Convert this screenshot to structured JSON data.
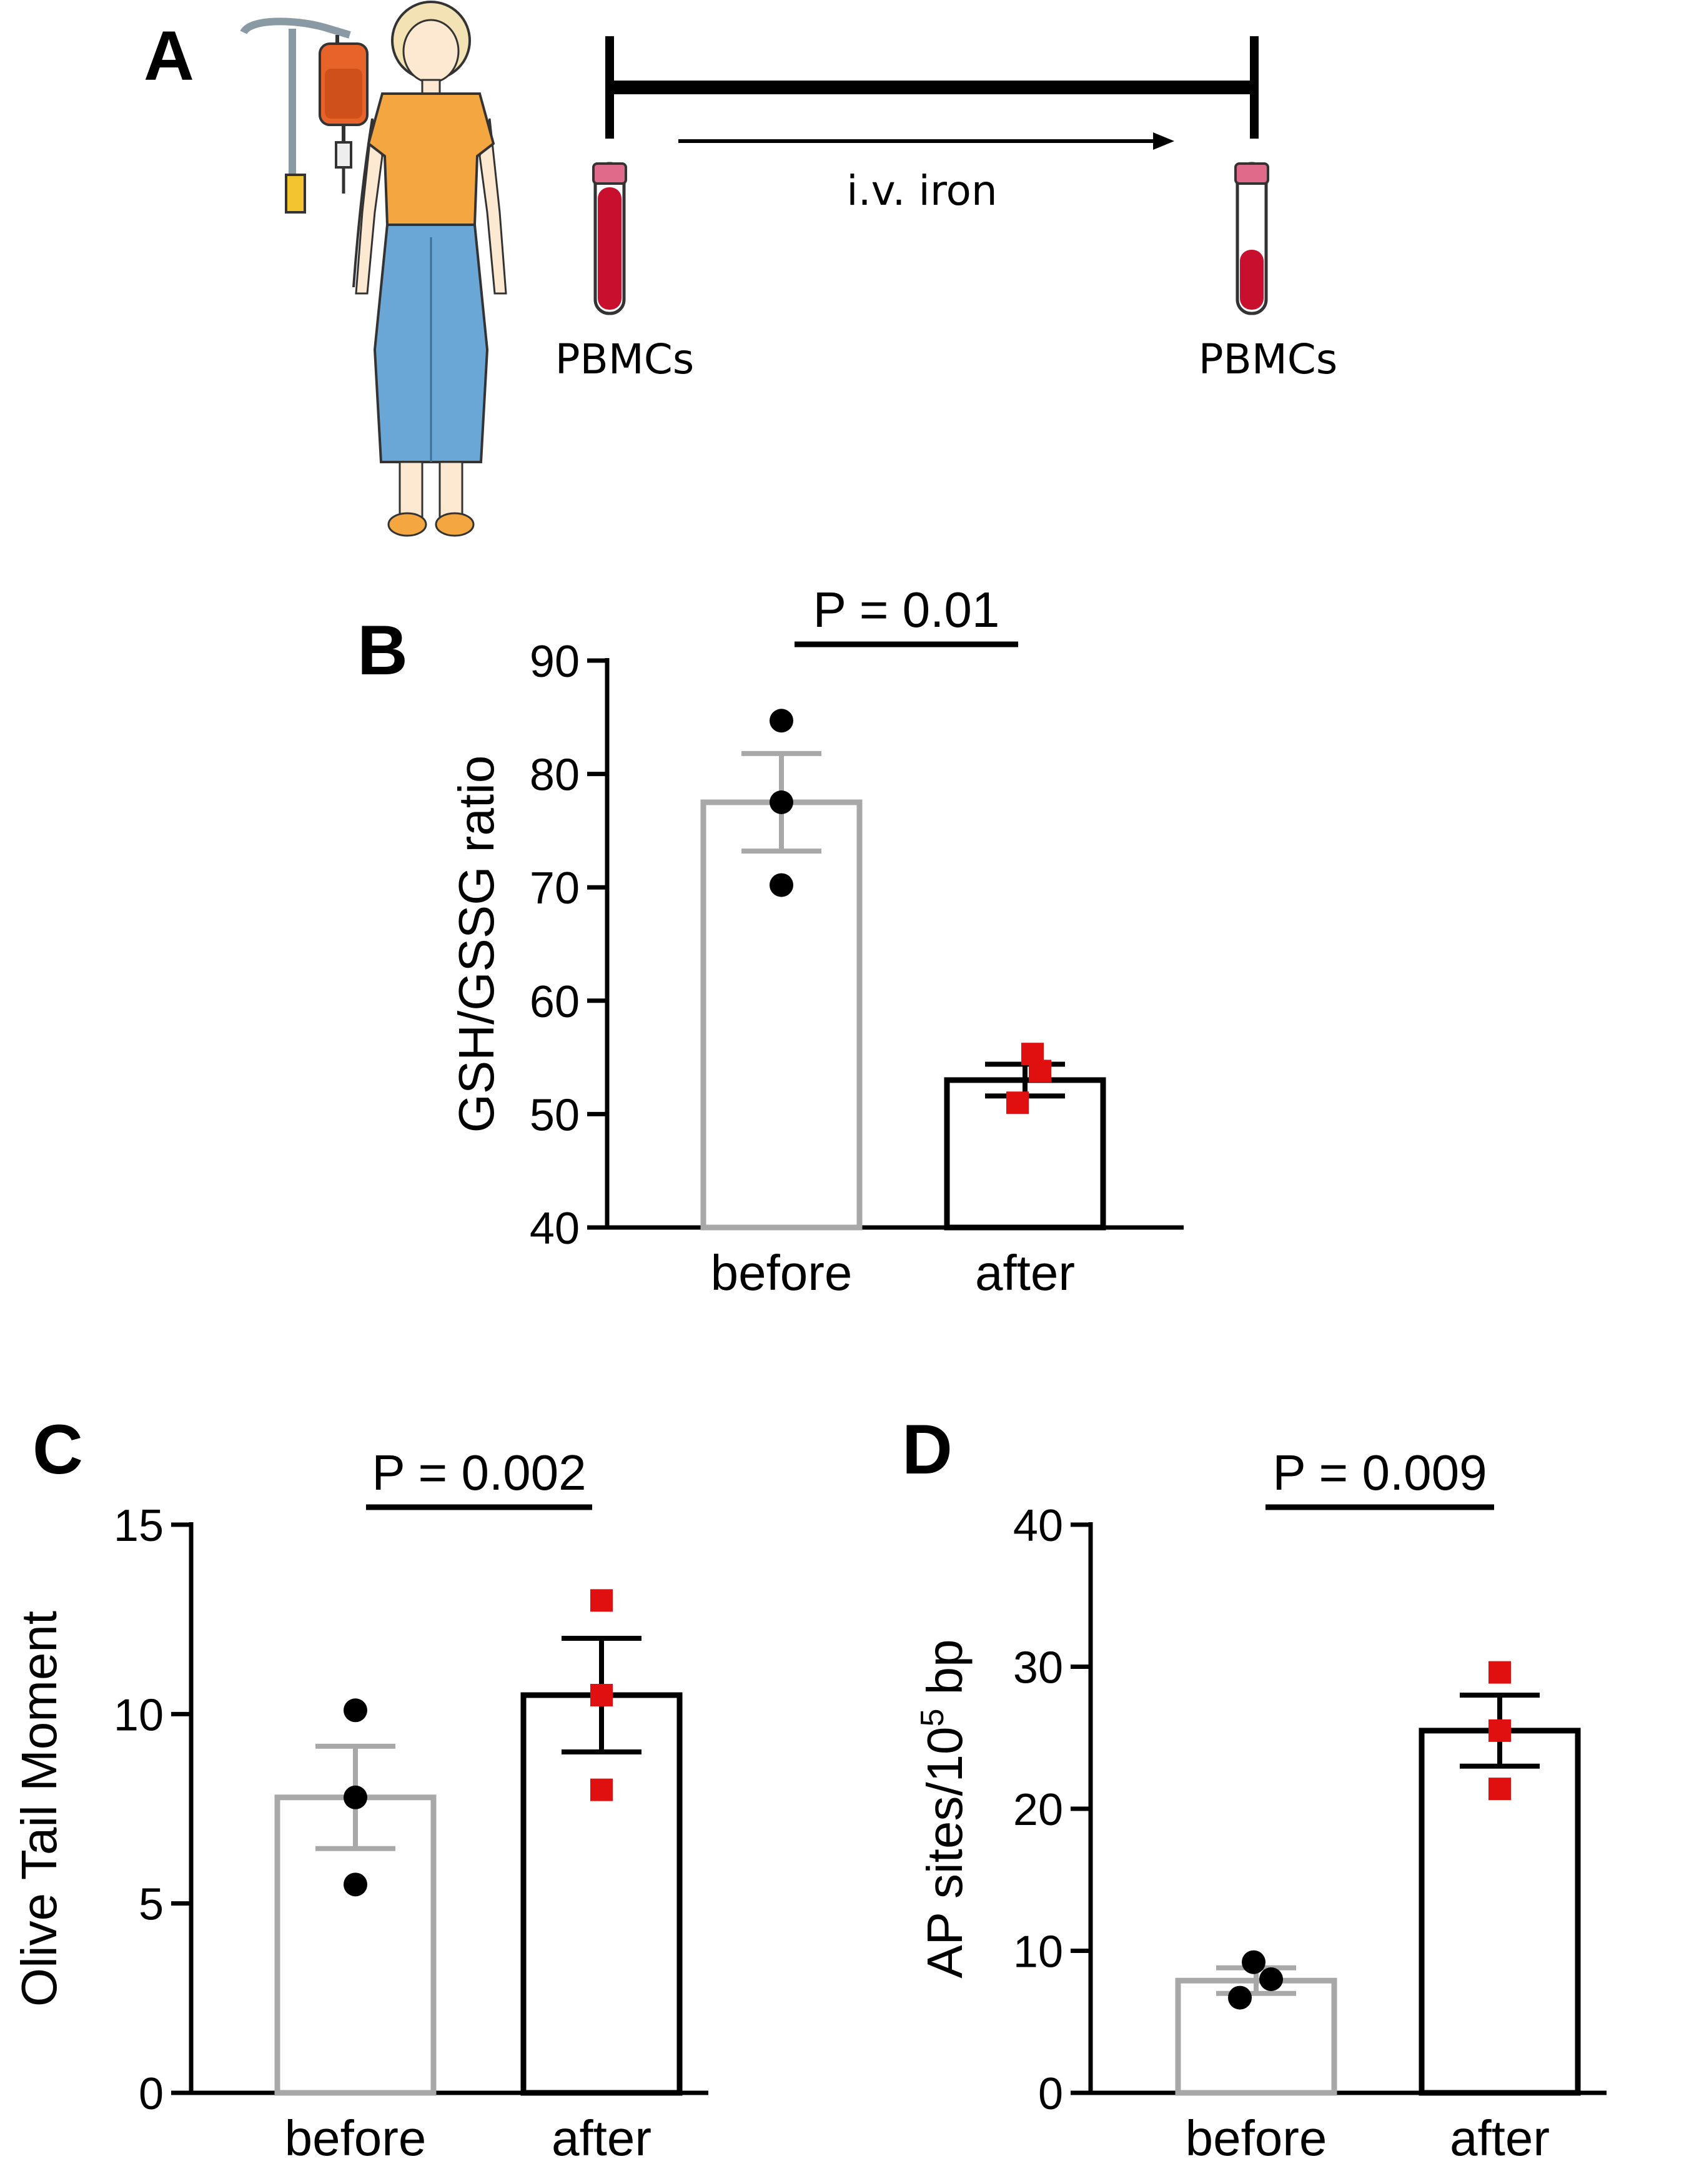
{
  "panel_a": {
    "letter": "A",
    "label_left": "PBMCs",
    "label_right": "PBMCs",
    "arrow_text": "i.v. iron",
    "colors": {
      "blood": "#c8102e",
      "iv_bag": "#e8632a",
      "shirt": "#f4a640",
      "skirt": "#6aa6d6",
      "skin": "#fde8d2"
    }
  },
  "colors": {
    "before": "#a8a8a8",
    "after": "#000000",
    "before_point": "#000000",
    "after_point": "#e11010"
  },
  "chart_data": [
    {
      "panel": "B",
      "type": "bar",
      "categories": [
        "before",
        "after"
      ],
      "ylabel": "GSH/GSSG ratio",
      "xlabel": "",
      "ylim": [
        40,
        90
      ],
      "yticks": [
        40,
        50,
        60,
        70,
        80,
        90
      ],
      "ytick_labels": [
        "40",
        "50",
        "60",
        "70",
        "80",
        "90"
      ],
      "values": [
        77.5,
        53.0
      ],
      "sem": [
        4.3,
        1.4
      ],
      "points": [
        [
          84.7,
          77.5,
          70.2
        ],
        [
          55.3,
          53.8,
          51.0
        ]
      ],
      "significance": "P = 0.01"
    },
    {
      "panel": "C",
      "type": "bar",
      "categories": [
        "before",
        "after"
      ],
      "ylabel": "Olive Tail Moment",
      "xlabel": "",
      "ylim": [
        0,
        15
      ],
      "yticks": [
        0,
        5,
        10,
        15
      ],
      "ytick_labels": [
        "0",
        "5",
        "10",
        "15"
      ],
      "values": [
        7.8,
        10.5
      ],
      "sem": [
        1.35,
        1.5
      ],
      "points": [
        [
          10.1,
          7.8,
          5.5
        ],
        [
          13.0,
          10.5,
          8.0
        ]
      ],
      "significance": "P = 0.002"
    },
    {
      "panel": "D",
      "type": "bar",
      "categories": [
        "before",
        "after"
      ],
      "ylabel": "AP sites/10",
      "ylabel_sup": "5",
      "ylabel_suffix": " bp",
      "xlabel": "",
      "ylim": [
        0,
        40
      ],
      "yticks": [
        0,
        10,
        20,
        30,
        40
      ],
      "ytick_labels": [
        "0",
        "10",
        "20",
        "30",
        "40"
      ],
      "values": [
        7.9,
        25.5
      ],
      "sem": [
        0.9,
        2.5
      ],
      "points": [
        [
          9.2,
          8.0,
          6.7
        ],
        [
          29.6,
          25.5,
          21.4
        ]
      ],
      "significance": "P = 0.009"
    }
  ]
}
